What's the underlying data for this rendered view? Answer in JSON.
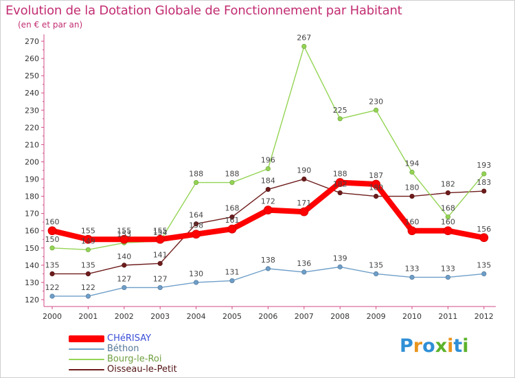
{
  "title": "Evolution de la Dotation Globale de Fonctionnement par Habitant",
  "subtitle": "(en € et par an)",
  "logo": {
    "text": "Proxiti",
    "letters": [
      {
        "ch": "P",
        "color": "#2f8fd6"
      },
      {
        "ch": "r",
        "color": "#e8951d"
      },
      {
        "ch": "o",
        "color": "#2f8fd6"
      },
      {
        "ch": "x",
        "color": "#5cb32b"
      },
      {
        "ch": "i",
        "color": "#e8951d"
      },
      {
        "ch": "t",
        "color": "#2f8fd6"
      },
      {
        "ch": "i",
        "color": "#5cb32b"
      }
    ]
  },
  "chart_data": {
    "type": "line",
    "title": "Evolution de la Dotation Globale de Fonctionnement par Habitant",
    "ylabel": "(en € et par an)",
    "xlabel": "",
    "x": [
      "2000",
      "2001",
      "2002",
      "2003",
      "2004",
      "2005",
      "2006",
      "2007",
      "2008",
      "2009",
      "2010",
      "2011",
      "2012"
    ],
    "ylim": [
      120,
      270
    ],
    "yticks": [
      120,
      130,
      140,
      150,
      160,
      170,
      180,
      190,
      200,
      210,
      220,
      230,
      240,
      250,
      260,
      270
    ],
    "grid": false,
    "legend_position": "bottom-left",
    "series": [
      {
        "name": "Oisseau-le-Petit",
        "color": "#6e1b1b",
        "emphasis": false,
        "values": [
          135,
          135,
          140,
          141,
          164,
          168,
          184,
          190,
          182,
          180,
          180,
          182,
          183
        ]
      },
      {
        "name": "Bourg-le-Roi",
        "color": "#94d454",
        "emphasis": false,
        "values": [
          150,
          149,
          153,
          154,
          188,
          188,
          196,
          267,
          225,
          230,
          194,
          168,
          193
        ]
      },
      {
        "name": "Béthon",
        "color": "#6e9ec8",
        "emphasis": false,
        "values": [
          122,
          122,
          127,
          127,
          130,
          131,
          138,
          136,
          139,
          135,
          133,
          133,
          135
        ]
      },
      {
        "name": "CHéRISAY",
        "color": "#ff0000",
        "emphasis": true,
        "values": [
          160,
          155,
          155,
          155,
          158,
          161,
          172,
          171,
          188,
          187,
          160,
          160,
          156
        ]
      }
    ],
    "legend_order": [
      "CHéRISAY",
      "Béthon",
      "Bourg-le-Roi",
      "Oisseau-le-Petit"
    ]
  }
}
